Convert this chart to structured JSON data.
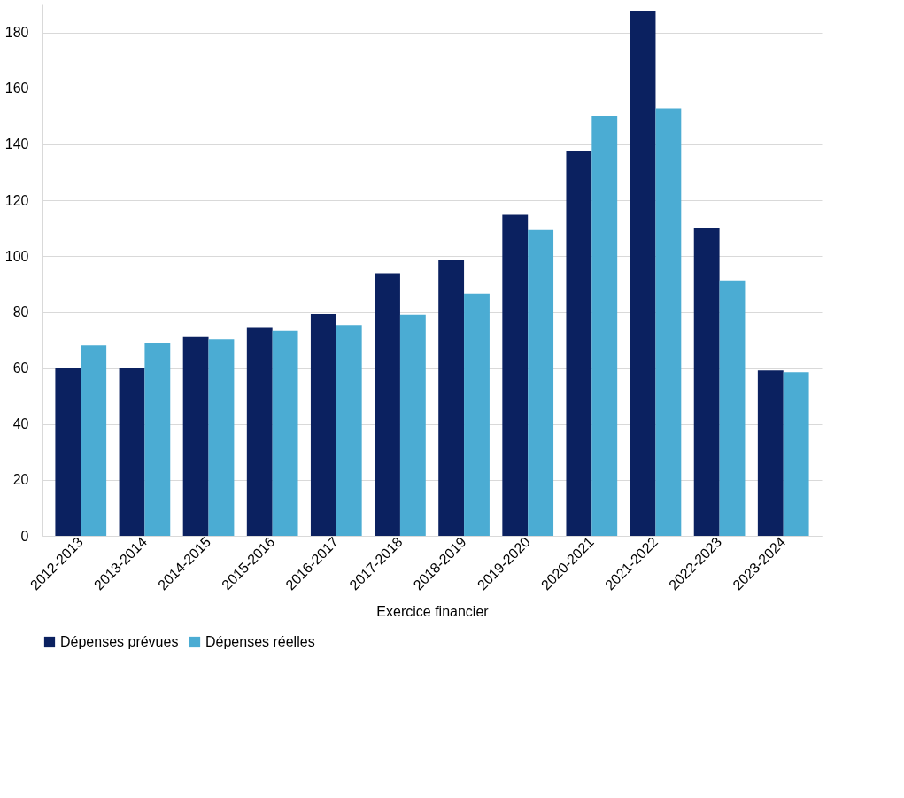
{
  "chart_data": {
    "type": "bar",
    "xlabel": "Exercice financier",
    "categories": [
      "2012-2013",
      "2013-2014",
      "2014-2015",
      "2015-2016",
      "2016-2017",
      "2017-2018",
      "2018-2019",
      "2019-2020",
      "2020-2021",
      "2021-2022",
      "2022-2023",
      "2023-2024"
    ],
    "series": [
      {
        "name": "Dépenses prévues",
        "color": "#0b2160",
        "values": [
          60.2,
          60,
          71.3,
          74.6,
          79.2,
          93.9,
          98.7,
          114.8,
          137.6,
          187.8,
          110.2,
          59.1
        ]
      },
      {
        "name": "Dépenses réelles",
        "color": "#4bacd3",
        "values": [
          68,
          69,
          70.2,
          73.2,
          75.3,
          78.9,
          86.5,
          109.3,
          150.1,
          152.8,
          91.3,
          58.5
        ]
      }
    ],
    "ylim": [
      0,
      190
    ],
    "yticks": [
      0,
      20,
      40,
      60,
      80,
      100,
      120,
      140,
      160,
      180
    ],
    "grid": "y",
    "legend": "bottom"
  }
}
